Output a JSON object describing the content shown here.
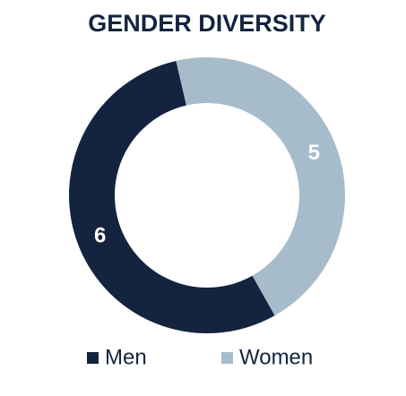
{
  "chart_data": {
    "type": "donut",
    "title": "GENDER DIVERSITY",
    "categories": [
      "Men",
      "Women"
    ],
    "values": [
      6,
      5
    ],
    "colors": [
      "#14243f",
      "#a7bccb"
    ],
    "legend": "bottom"
  }
}
